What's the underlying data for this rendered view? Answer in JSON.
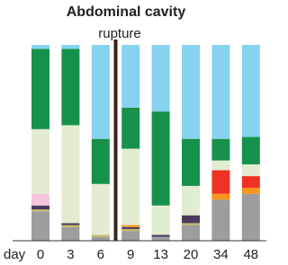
{
  "chart_data": {
    "type": "stacked-bar",
    "title": "Abdominal cavity",
    "annotation": "rupture",
    "x_label": "day",
    "categories": [
      "0",
      "3",
      "6",
      "9",
      "13",
      "20",
      "34",
      "48"
    ],
    "ylim": [
      0,
      100
    ],
    "series": [
      {
        "color": "#9d9d9d",
        "values": [
          15,
          7,
          2,
          5,
          2,
          8,
          21,
          24
        ]
      },
      {
        "color": "#c9b866",
        "values": [
          1,
          1,
          1,
          1,
          0,
          1,
          0,
          0
        ]
      },
      {
        "color": "#4b3b5e",
        "values": [
          2,
          1,
          0,
          1,
          1,
          4,
          0,
          0
        ]
      },
      {
        "color": "#f7941d",
        "values": [
          0,
          0,
          0,
          1,
          0,
          0,
          3,
          3
        ]
      },
      {
        "color": "#ee3224",
        "values": [
          0,
          0,
          0,
          0,
          0,
          0,
          12,
          6
        ]
      },
      {
        "color": "#f6c5dd",
        "values": [
          6,
          0,
          0,
          0,
          0,
          0,
          0,
          0
        ]
      },
      {
        "color": "#e2ecd0",
        "values": [
          33,
          50,
          26,
          39,
          15,
          15,
          5,
          6
        ]
      },
      {
        "color": "#16914b",
        "values": [
          41,
          39,
          23,
          21,
          48,
          24,
          11,
          14
        ]
      },
      {
        "color": "#87d2ef",
        "values": [
          2,
          2,
          48,
          32,
          34,
          48,
          48,
          47
        ]
      }
    ]
  }
}
